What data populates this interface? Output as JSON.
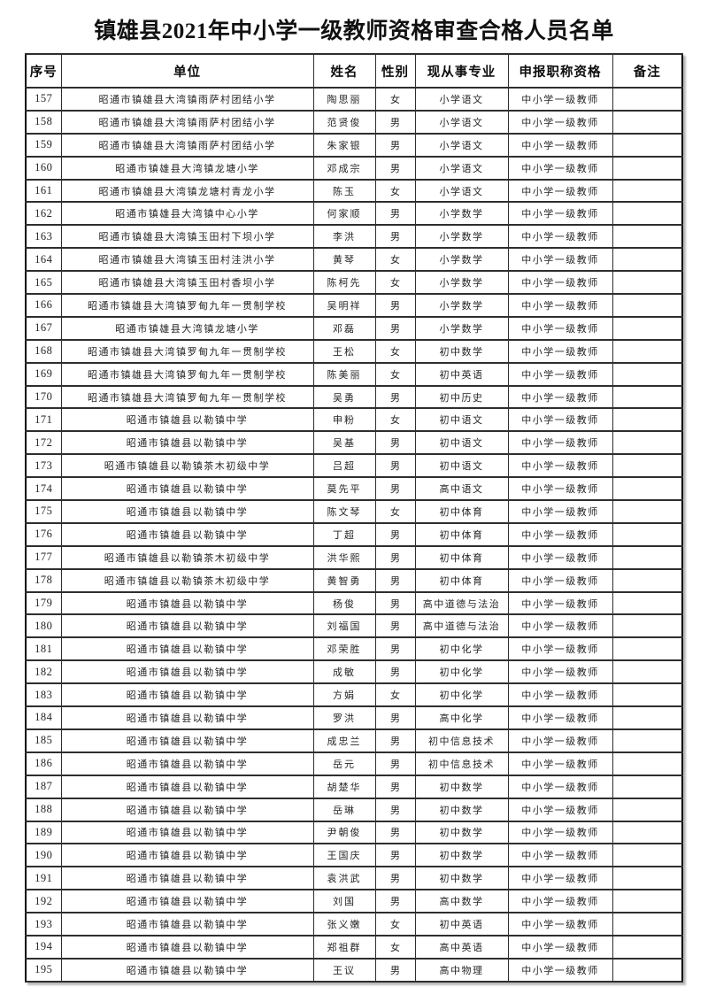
{
  "title": "镇雄县2021年中小学一级教师资格审查合格人员名单",
  "table": {
    "columns": [
      "序号",
      "单位",
      "姓名",
      "性别",
      "现从事专业",
      "申报职称资格",
      "备注"
    ],
    "rows": [
      [
        "157",
        "昭通市镇雄县大湾镇雨萨村团结小学",
        "陶思丽",
        "女",
        "小学语文",
        "中小学一级教师",
        ""
      ],
      [
        "158",
        "昭通市镇雄县大湾镇雨萨村团结小学",
        "范贤俊",
        "男",
        "小学语文",
        "中小学一级教师",
        ""
      ],
      [
        "159",
        "昭通市镇雄县大湾镇雨萨村团结小学",
        "朱家银",
        "男",
        "小学语文",
        "中小学一级教师",
        ""
      ],
      [
        "160",
        "昭通市镇雄县大湾镇龙塘小学",
        "邓成宗",
        "男",
        "小学语文",
        "中小学一级教师",
        ""
      ],
      [
        "161",
        "昭通市镇雄县大湾镇龙塘村青龙小学",
        "陈玉",
        "女",
        "小学语文",
        "中小学一级教师",
        ""
      ],
      [
        "162",
        "昭通市镇雄县大湾镇中心小学",
        "何家顺",
        "男",
        "小学数学",
        "中小学一级教师",
        ""
      ],
      [
        "163",
        "昭通市镇雄县大湾镇玉田村下坝小学",
        "李洪",
        "男",
        "小学数学",
        "中小学一级教师",
        ""
      ],
      [
        "164",
        "昭通市镇雄县大湾镇玉田村洼洪小学",
        "黄琴",
        "女",
        "小学数学",
        "中小学一级教师",
        ""
      ],
      [
        "165",
        "昭通市镇雄县大湾镇玉田村香坝小学",
        "陈柯先",
        "女",
        "小学数学",
        "中小学一级教师",
        ""
      ],
      [
        "166",
        "昭通市镇雄县大湾镇罗甸九年一贯制学校",
        "吴明祥",
        "男",
        "小学数学",
        "中小学一级教师",
        ""
      ],
      [
        "167",
        "昭通市镇雄县大湾镇龙塘小学",
        "邓磊",
        "男",
        "小学数学",
        "中小学一级教师",
        ""
      ],
      [
        "168",
        "昭通市镇雄县大湾镇罗甸九年一贯制学校",
        "王松",
        "女",
        "初中数学",
        "中小学一级教师",
        ""
      ],
      [
        "169",
        "昭通市镇雄县大湾镇罗甸九年一贯制学校",
        "陈美丽",
        "女",
        "初中英语",
        "中小学一级教师",
        ""
      ],
      [
        "170",
        "昭通市镇雄县大湾镇罗甸九年一贯制学校",
        "吴勇",
        "男",
        "初中历史",
        "中小学一级教师",
        ""
      ],
      [
        "171",
        "昭通市镇雄县以勒镇中学",
        "申粉",
        "女",
        "初中语文",
        "中小学一级教师",
        ""
      ],
      [
        "172",
        "昭通市镇雄县以勒镇中学",
        "吴基",
        "男",
        "初中语文",
        "中小学一级教师",
        ""
      ],
      [
        "173",
        "昭通市镇雄县以勒镇茶木初级中学",
        "吕超",
        "男",
        "初中语文",
        "中小学一级教师",
        ""
      ],
      [
        "174",
        "昭通市镇雄县以勒镇中学",
        "莫先平",
        "男",
        "高中语文",
        "中小学一级教师",
        ""
      ],
      [
        "175",
        "昭通市镇雄县以勒镇中学",
        "陈文琴",
        "女",
        "初中体育",
        "中小学一级教师",
        ""
      ],
      [
        "176",
        "昭通市镇雄县以勒镇中学",
        "丁超",
        "男",
        "初中体育",
        "中小学一级教师",
        ""
      ],
      [
        "177",
        "昭通市镇雄县以勒镇茶木初级中学",
        "洪华熙",
        "男",
        "初中体育",
        "中小学一级教师",
        ""
      ],
      [
        "178",
        "昭通市镇雄县以勒镇茶木初级中学",
        "黄智勇",
        "男",
        "初中体育",
        "中小学一级教师",
        ""
      ],
      [
        "179",
        "昭通市镇雄县以勒镇中学",
        "杨俊",
        "男",
        "高中道德与法治",
        "中小学一级教师",
        ""
      ],
      [
        "180",
        "昭通市镇雄县以勒镇中学",
        "刘福国",
        "男",
        "高中道德与法治",
        "中小学一级教师",
        ""
      ],
      [
        "181",
        "昭通市镇雄县以勒镇中学",
        "邓荣胜",
        "男",
        "初中化学",
        "中小学一级教师",
        ""
      ],
      [
        "182",
        "昭通市镇雄县以勒镇中学",
        "成敏",
        "男",
        "初中化学",
        "中小学一级教师",
        ""
      ],
      [
        "183",
        "昭通市镇雄县以勒镇中学",
        "方娟",
        "女",
        "初中化学",
        "中小学一级教师",
        ""
      ],
      [
        "184",
        "昭通市镇雄县以勒镇中学",
        "罗洪",
        "男",
        "高中化学",
        "中小学一级教师",
        ""
      ],
      [
        "185",
        "昭通市镇雄县以勒镇中学",
        "成忠兰",
        "男",
        "初中信息技术",
        "中小学一级教师",
        ""
      ],
      [
        "186",
        "昭通市镇雄县以勒镇中学",
        "岳元",
        "男",
        "初中信息技术",
        "中小学一级教师",
        ""
      ],
      [
        "187",
        "昭通市镇雄县以勒镇中学",
        "胡楚华",
        "男",
        "初中数学",
        "中小学一级教师",
        ""
      ],
      [
        "188",
        "昭通市镇雄县以勒镇中学",
        "岳琳",
        "男",
        "初中数学",
        "中小学一级教师",
        ""
      ],
      [
        "189",
        "昭通市镇雄县以勒镇中学",
        "尹朝俊",
        "男",
        "初中数学",
        "中小学一级教师",
        ""
      ],
      [
        "190",
        "昭通市镇雄县以勒镇中学",
        "王国庆",
        "男",
        "初中数学",
        "中小学一级教师",
        ""
      ],
      [
        "191",
        "昭通市镇雄县以勒镇中学",
        "袁洪武",
        "男",
        "初中数学",
        "中小学一级教师",
        ""
      ],
      [
        "192",
        "昭通市镇雄县以勒镇中学",
        "刘国",
        "男",
        "高中数学",
        "中小学一级教师",
        ""
      ],
      [
        "193",
        "昭通市镇雄县以勒镇中学",
        "张义嫩",
        "女",
        "初中英语",
        "中小学一级教师",
        ""
      ],
      [
        "194",
        "昭通市镇雄县以勒镇中学",
        "郑祖群",
        "女",
        "高中英语",
        "中小学一级教师",
        ""
      ],
      [
        "195",
        "昭通市镇雄县以勒镇中学",
        "王议",
        "男",
        "高中物理",
        "中小学一级教师",
        ""
      ]
    ]
  }
}
